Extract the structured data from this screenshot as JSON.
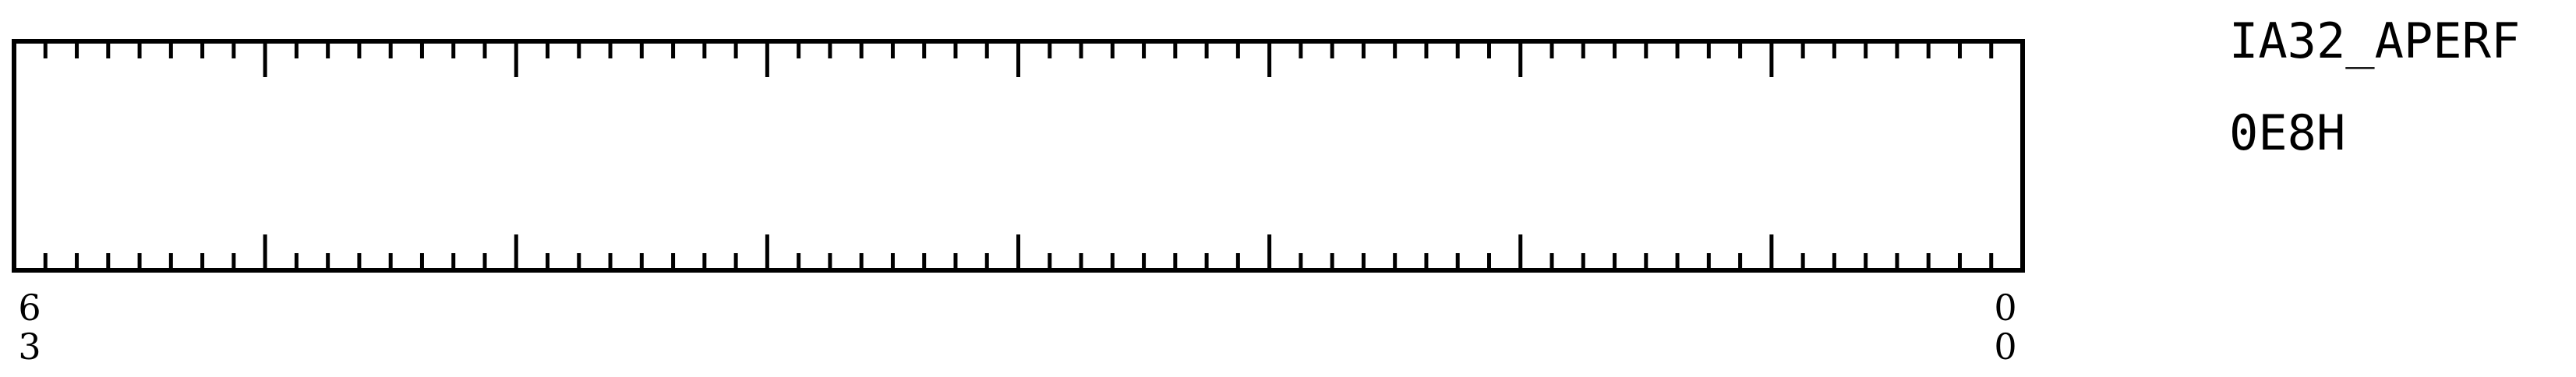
{
  "register": {
    "name": "IA32_APERF",
    "address": "0E8H",
    "width_bits": 64,
    "msb_label": [
      "6",
      "3"
    ],
    "lsb_label": [
      "0",
      "0"
    ]
  }
}
